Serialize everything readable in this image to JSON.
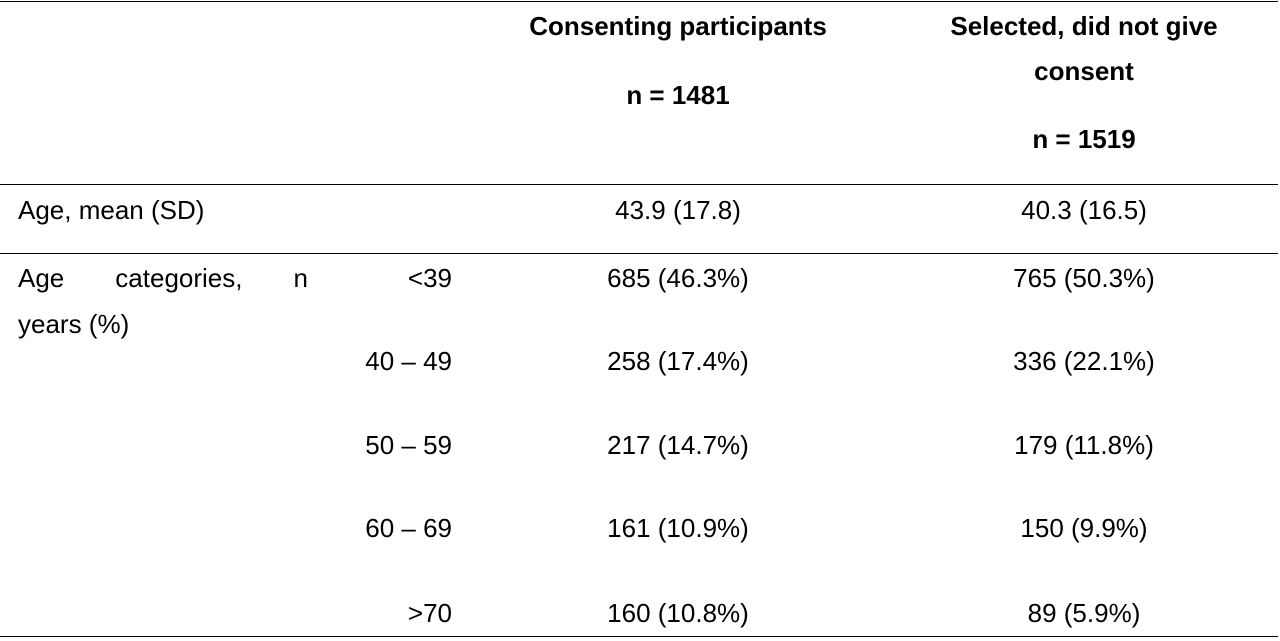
{
  "header": {
    "col1_title": "Consenting participants",
    "col1_n": "n = 1481",
    "col2_title_line1": "Selected, did not give",
    "col2_title_line2": "consent",
    "col2_n": "n = 1519"
  },
  "age_mean": {
    "label": "Age, mean (SD)",
    "col1": "43.9 (17.8)",
    "col2": "40.3 (16.5)"
  },
  "age_categories": {
    "label_line1": "Age categories, n",
    "label_line2": "years (%)",
    "rows": [
      {
        "range": "<39",
        "col1": "685 (46.3%)",
        "col2": "765 (50.3%)"
      },
      {
        "range": "40 – 49",
        "col1": "258 (17.4%)",
        "col2": "336 (22.1%)"
      },
      {
        "range": "50 – 59",
        "col1": "217 (14.7%)",
        "col2": "179 (11.8%)"
      },
      {
        "range": "60 – 69",
        "col1": "161 (10.9%)",
        "col2": "150 (9.9%)"
      },
      {
        "range": ">70",
        "col1": "160 (10.8%)",
        "col2": "89 (5.9%)"
      }
    ]
  }
}
